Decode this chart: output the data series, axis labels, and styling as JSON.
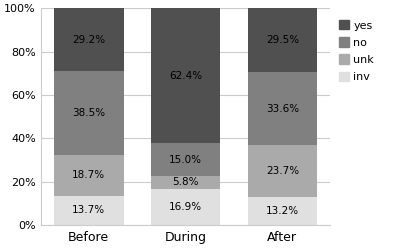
{
  "categories": [
    "Before",
    "During",
    "After"
  ],
  "series": {
    "inv": [
      13.7,
      16.9,
      13.2
    ],
    "unk": [
      18.7,
      5.8,
      23.7
    ],
    "no": [
      38.5,
      15.0,
      33.6
    ],
    "yes": [
      29.2,
      62.4,
      29.5
    ]
  },
  "colors": {
    "inv": "#e0e0e0",
    "unk": "#aaaaaa",
    "no": "#808080",
    "yes": "#505050"
  },
  "legend_labels": [
    "yes",
    "no",
    "unk",
    "inv"
  ],
  "bar_width": 0.72,
  "ylim": [
    0,
    100
  ],
  "yticks": [
    0,
    20,
    40,
    60,
    80,
    100
  ],
  "yticklabels": [
    "0%",
    "20%",
    "40%",
    "60%",
    "80%",
    "100%"
  ],
  "background_color": "#ffffff",
  "grid_color": "#cccccc"
}
